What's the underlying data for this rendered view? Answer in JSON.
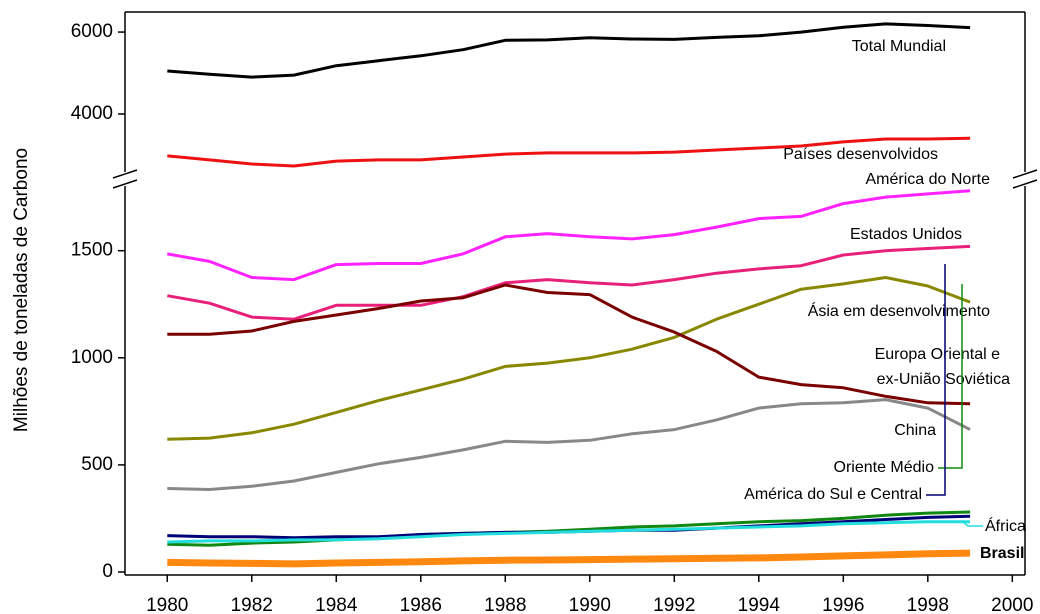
{
  "chart_data": {
    "type": "line",
    "y_label": "Milhões de toneladas de Carbono",
    "x": [
      1980,
      1981,
      1982,
      1983,
      1984,
      1985,
      1986,
      1987,
      1988,
      1989,
      1990,
      1991,
      1992,
      1993,
      1994,
      1995,
      1996,
      1997,
      1998,
      1999
    ],
    "xlim": [
      1979,
      2000.3
    ],
    "xticks": [
      1980,
      1982,
      1984,
      1986,
      1988,
      1990,
      1992,
      1994,
      1996,
      1998,
      2000
    ],
    "ylim": [
      0,
      1830
    ],
    "yticks": [
      0,
      500,
      1000,
      1500
    ],
    "ylim_upper": [
      2340,
      6490
    ],
    "yticks_upper": [
      4000,
      6000
    ],
    "axis_break": true,
    "series": [
      {
        "name": "Total Mundial",
        "color": "#000000",
        "panel": "upper",
        "values": [
          5050,
          4970,
          4900,
          4950,
          5180,
          5300,
          5420,
          5570,
          5800,
          5810,
          5860,
          5830,
          5820,
          5870,
          5910,
          6000,
          6120,
          6200,
          6160,
          6110
        ]
      },
      {
        "name": "Países desenvolvidos",
        "color": "#ee1111",
        "panel": "upper",
        "values": [
          2976,
          2880,
          2780,
          2730,
          2850,
          2880,
          2880,
          2950,
          3020,
          3050,
          3050,
          3050,
          3070,
          3120,
          3170,
          3220,
          3320,
          3390,
          3390,
          3410
        ]
      },
      {
        "name": "América do Norte",
        "color": "#ff22ff",
        "panel": "lower",
        "values": [
          1485,
          1450,
          1375,
          1365,
          1435,
          1440,
          1440,
          1485,
          1565,
          1580,
          1565,
          1555,
          1575,
          1610,
          1650,
          1660,
          1720,
          1750,
          1765,
          1780
        ]
      },
      {
        "name": "Estados Unidos",
        "color": "#e8207a",
        "panel": "lower",
        "values": [
          1290,
          1255,
          1190,
          1180,
          1245,
          1245,
          1245,
          1285,
          1350,
          1365,
          1350,
          1340,
          1365,
          1395,
          1415,
          1430,
          1480,
          1500,
          1510,
          1520
        ]
      },
      {
        "name": "Ásia em desenvolvimento",
        "color": "#888800",
        "panel": "lower",
        "values": [
          620,
          625,
          650,
          690,
          745,
          800,
          850,
          900,
          960,
          975,
          1000,
          1040,
          1095,
          1180,
          1250,
          1320,
          1345,
          1375,
          1335,
          1260
        ]
      },
      {
        "name": [
          "Europa Oriental e",
          "ex-União Soviética"
        ],
        "color": "#7a0000",
        "panel": "lower",
        "values": [
          1110,
          1110,
          1125,
          1170,
          1200,
          1230,
          1265,
          1280,
          1340,
          1305,
          1295,
          1190,
          1120,
          1030,
          910,
          875,
          860,
          820,
          790,
          785
        ]
      },
      {
        "name": "China",
        "color": "#888888",
        "panel": "lower",
        "values": [
          390,
          385,
          400,
          425,
          465,
          505,
          535,
          570,
          610,
          605,
          615,
          645,
          665,
          710,
          765,
          785,
          790,
          805,
          765,
          665
        ]
      },
      {
        "name": "Oriente Médio",
        "color": "#118811",
        "panel": "lower",
        "values": [
          130,
          125,
          135,
          140,
          150,
          160,
          175,
          180,
          185,
          190,
          200,
          210,
          215,
          225,
          235,
          240,
          250,
          265,
          275,
          280
        ]
      },
      {
        "name": "América do Sul e Central",
        "color": "#000077",
        "panel": "lower",
        "values": [
          170,
          165,
          165,
          160,
          165,
          165,
          175,
          180,
          185,
          185,
          190,
          195,
          195,
          205,
          215,
          225,
          235,
          245,
          255,
          260
        ]
      },
      {
        "name": "África",
        "color": "#22dddd",
        "panel": "lower",
        "values": [
          140,
          145,
          145,
          150,
          150,
          155,
          165,
          175,
          180,
          185,
          190,
          195,
          200,
          205,
          210,
          215,
          225,
          230,
          235,
          235
        ]
      },
      {
        "name": "Brasil",
        "color": "#ff8811",
        "panel": "lower",
        "values": [
          45,
          42,
          40,
          38,
          42,
          45,
          48,
          52,
          55,
          56,
          58,
          60,
          62,
          64,
          66,
          70,
          75,
          80,
          85,
          88
        ]
      }
    ]
  }
}
